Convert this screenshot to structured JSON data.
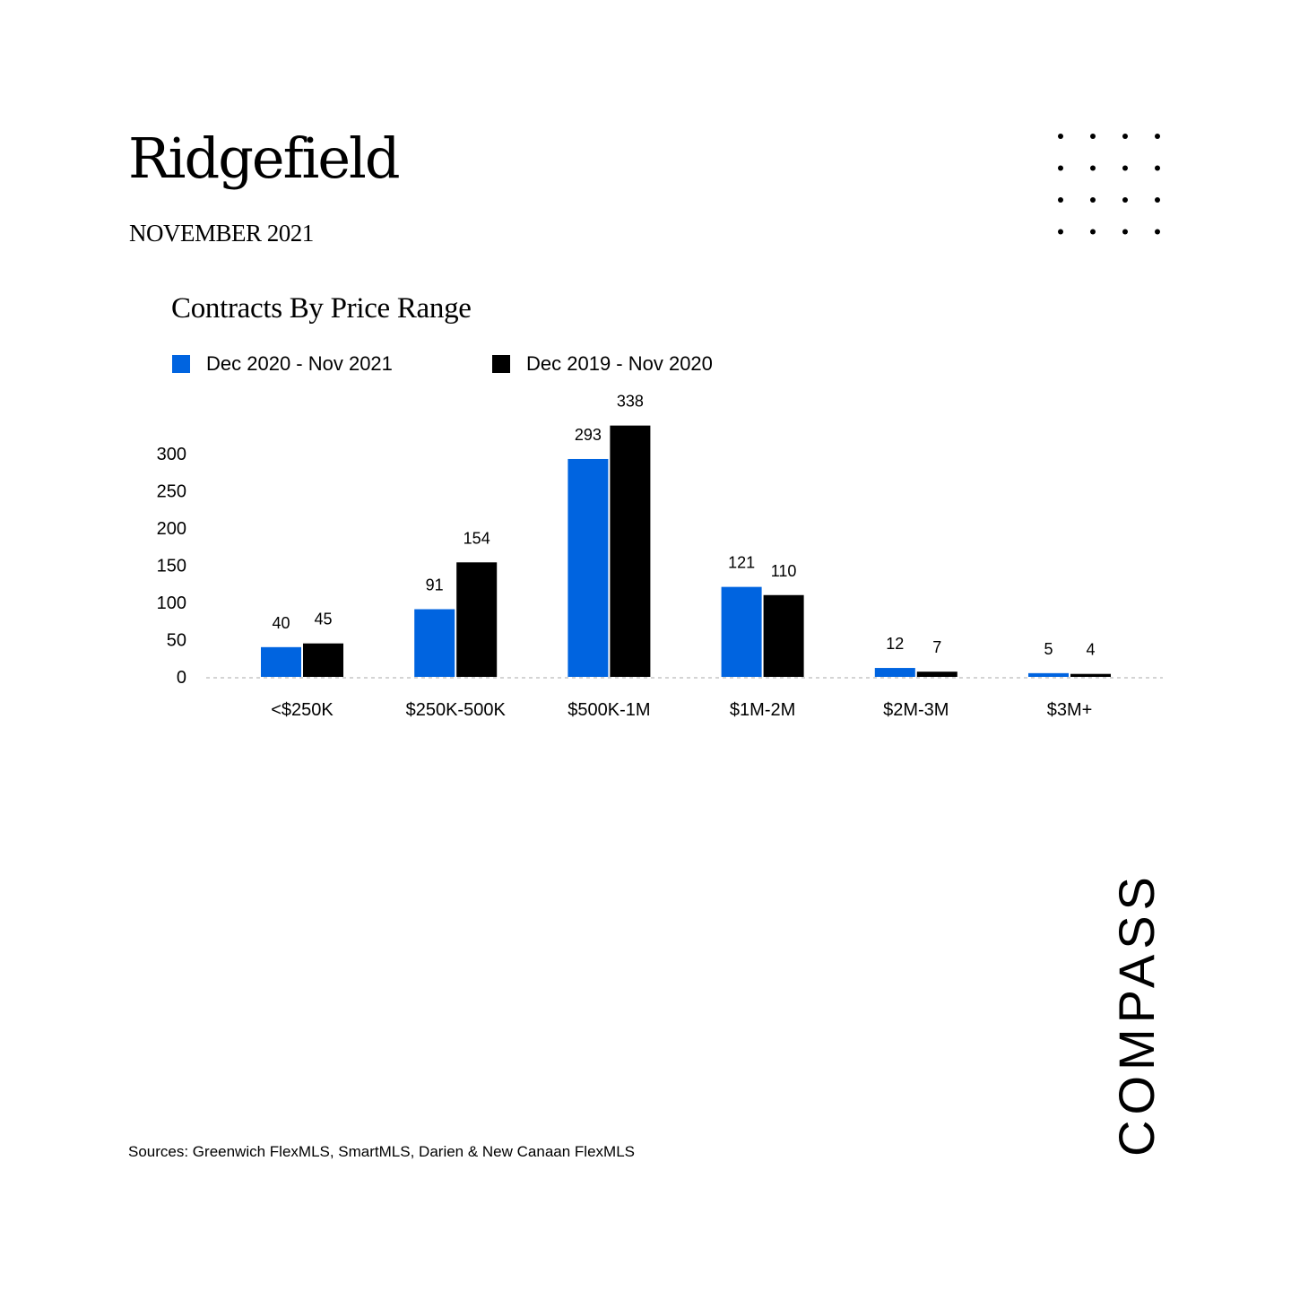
{
  "header": {
    "title": "Ridgefield",
    "subtitle": "NOVEMBER 2021"
  },
  "decoration": {
    "dot_grid": "4x4-dot-grid"
  },
  "chart_data": {
    "type": "bar",
    "title": "Contracts By Price Range",
    "categories": [
      "<$250K",
      "$250K-500K",
      "$500K-1M",
      "$1M-2M",
      "$2M-3M",
      "$3M+"
    ],
    "series": [
      {
        "name": "Dec 2020 - Nov 2021",
        "color": "#0064e0",
        "values": [
          40,
          91,
          293,
          121,
          12,
          5
        ]
      },
      {
        "name": "Dec 2019 - Nov 2020",
        "color": "#000000",
        "values": [
          45,
          154,
          338,
          110,
          7,
          4
        ]
      }
    ],
    "yticks": [
      0,
      50,
      100,
      150,
      200,
      250,
      300
    ],
    "ylim": [
      0,
      340
    ],
    "grid": false,
    "legend_position": "top-left",
    "xlabel": "",
    "ylabel": ""
  },
  "footer": {
    "source": "Sources: Greenwich FlexMLS, SmartMLS, Darien & New Canaan FlexMLS"
  },
  "brand": {
    "name": "COMPASS",
    "logo_icon": "compass-wordmark-logo"
  }
}
